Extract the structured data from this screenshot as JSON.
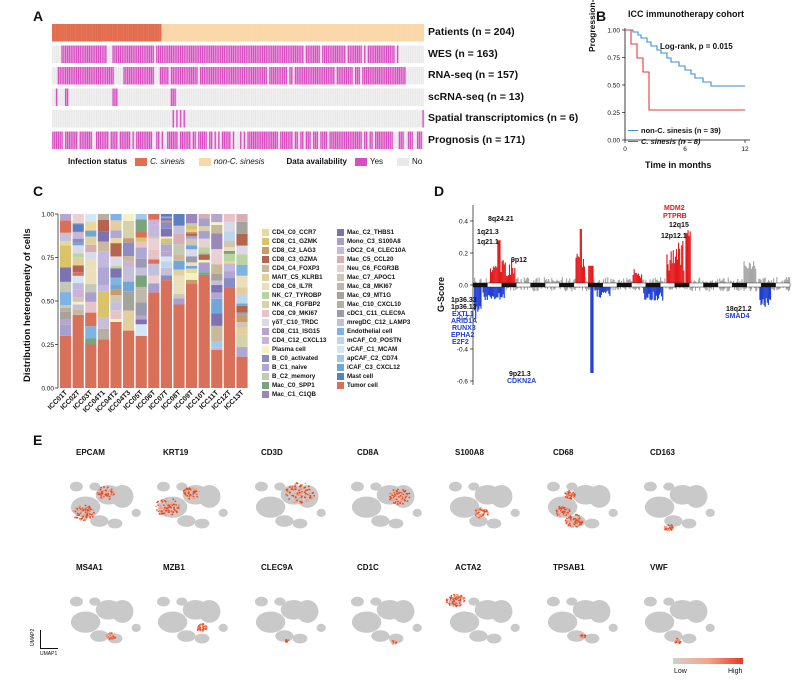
{
  "panels": {
    "A": {
      "letter": "A",
      "rows": [
        {
          "label": "Patients (n = 204)"
        },
        {
          "label": "WES (n = 163)"
        },
        {
          "label": "RNA-seq (n = 157)"
        },
        {
          "label": "scRNA-seq (n = 13)"
        },
        {
          "label": "Spatial transcriptomics (n = 6)"
        },
        {
          "label": "Prognosis (n = 171)"
        }
      ],
      "legend": {
        "infection_title": "Infection status",
        "infection_items": [
          {
            "label": "C. sinesis",
            "color": "#e36e4f"
          },
          {
            "label": "non-C. sinesis",
            "color": "#fad7a8"
          }
        ],
        "availability_title": "Data availability",
        "availability_items": [
          {
            "label": "Yes",
            "color": "#d94fc3"
          },
          {
            "label": "No",
            "color": "#e8e8e8"
          }
        ]
      }
    },
    "B": {
      "letter": "B",
      "title": "ICC immunotherapy cohort",
      "ylabel": "Progression-free survival",
      "xlabel": "Time in months",
      "annotation": "Log-rank, p = 0.015",
      "xticks": [
        "0",
        "6",
        "12"
      ],
      "yticks": [
        "0.00",
        "0.25",
        "0.50",
        "0.75",
        "1.00"
      ],
      "legend": [
        {
          "label": "non-C. sinesis (n = 39)",
          "color": "#3a8fd6"
        },
        {
          "label": "C. sinesis (n = 8)",
          "color": "#e6393c"
        }
      ]
    },
    "C": {
      "letter": "C",
      "ylabel": "Distribution heterogeneity of cells",
      "yticks": [
        "0.00",
        "0.25",
        "0.50",
        "0.75",
        "1.00"
      ],
      "samples": [
        "ICC01T",
        "ICC02T",
        "ICC03T",
        "ICC04T1",
        "ICC04T2",
        "ICC04T3",
        "ICC05T",
        "ICC06T",
        "ICC07T",
        "ICC08T",
        "ICC09T",
        "ICC10T",
        "ICC11T",
        "ICC12T",
        "ICC13T"
      ],
      "legend_col1": [
        {
          "label": "CD4_C0_CCR7",
          "color": "#e8d89a"
        },
        {
          "label": "CD8_C1_GZMK",
          "color": "#d9c46a"
        },
        {
          "label": "CD8_C2_LAG3",
          "color": "#c99a6a"
        },
        {
          "label": "CD8_C3_GZMA",
          "color": "#b5654e"
        },
        {
          "label": "CD4_C4_FOXP3",
          "color": "#c9b99a"
        },
        {
          "label": "MAIT_C5_KLRB1",
          "color": "#e3cf9e"
        },
        {
          "label": "CD8_C6_IL7R",
          "color": "#eadfb8"
        },
        {
          "label": "NK_C7_TYROBP",
          "color": "#b9d4a2"
        },
        {
          "label": "NK_C8_FGFBP2",
          "color": "#d6d2aa"
        },
        {
          "label": "CD8_C9_MKI67",
          "color": "#e7c3c5"
        },
        {
          "label": "γδT_C10_TRDC",
          "color": "#d9d9e8"
        },
        {
          "label": "CD8_C11_ISG15",
          "color": "#b7a6cc"
        },
        {
          "label": "CD4_C12_CXCL13",
          "color": "#ceb1d8"
        },
        {
          "label": "Plasma cell",
          "color": "#f2f2c4"
        },
        {
          "label": "B_C0_activated",
          "color": "#8c8cc4"
        },
        {
          "label": "B_C1_naive",
          "color": "#b0a8d4"
        },
        {
          "label": "B_C2_memory",
          "color": "#c3c9b4"
        },
        {
          "label": "Mac_C0_SPP1",
          "color": "#7aa37e"
        },
        {
          "label": "Mac_C1_C1QB",
          "color": "#9a88b8"
        }
      ],
      "legend_col2": [
        {
          "label": "Mac_C2_THBS1",
          "color": "#7d73b3"
        },
        {
          "label": "Mono_C3_S100A8",
          "color": "#a89fcf"
        },
        {
          "label": "cDC2_C4_CLEC10A",
          "color": "#c4b8de"
        },
        {
          "label": "Mac_C5_CCL20",
          "color": "#d8aeb4"
        },
        {
          "label": "Neu_C6_FCGR3B",
          "color": "#e9d0d3"
        },
        {
          "label": "Mac_C7_APOC1",
          "color": "#cfc6b4"
        },
        {
          "label": "Mac_C8_MKI67",
          "color": "#bdb8a8"
        },
        {
          "label": "Mac_C9_MT1G",
          "color": "#a5a49a"
        },
        {
          "label": "Mac_C10_CXCL10",
          "color": "#b8aea3"
        },
        {
          "label": "cDC1_C11_CLEC9A",
          "color": "#9b9bb0"
        },
        {
          "label": "mregDC_C12_LAMP3",
          "color": "#c5c0d9"
        },
        {
          "label": "Endothelial cell",
          "color": "#7fb3e3"
        },
        {
          "label": "mCAF_C0_POSTN",
          "color": "#bcd6ee"
        },
        {
          "label": "vCAF_C1_MCAM",
          "color": "#d4e6f4"
        },
        {
          "label": "apCAF_C2_CD74",
          "color": "#a3c9e8"
        },
        {
          "label": "iCAF_C3_CXCL12",
          "color": "#6fa7db"
        },
        {
          "label": "Mast cell",
          "color": "#5c7fc0"
        },
        {
          "label": "Tumor cell",
          "color": "#d9705a"
        }
      ]
    },
    "D": {
      "letter": "D",
      "ylabel": "G-Score",
      "yticks": [
        "0.4",
        "0.2",
        "0.0",
        "-0.2",
        "-0.4",
        "-0.6"
      ],
      "labels": [
        {
          "text": "1q21.3",
          "color": "#111111"
        },
        {
          "text": "1q21.1",
          "color": "#111111"
        },
        {
          "text": "8q24.21",
          "color": "#111111"
        },
        {
          "text": "9p12",
          "color": "#111111"
        },
        {
          "text": "MDM2",
          "color": "#e31a1c"
        },
        {
          "text": "PTPRB",
          "color": "#e31a1c"
        },
        {
          "text": "12q15",
          "color": "#111111"
        },
        {
          "text": "12p12.1",
          "color": "#111111"
        },
        {
          "text": "1p36.33",
          "color": "#111111"
        },
        {
          "text": "1p36.13",
          "color": "#111111"
        },
        {
          "text": "EXTL1",
          "color": "#1f3fd6"
        },
        {
          "text": "ARID1A",
          "color": "#1f3fd6"
        },
        {
          "text": "RUNX3",
          "color": "#1f3fd6"
        },
        {
          "text": "EPHA2",
          "color": "#1f3fd6"
        },
        {
          "text": "E2F2",
          "color": "#1f3fd6"
        },
        {
          "text": "9p21.3",
          "color": "#111111"
        },
        {
          "text": "CDKN2A",
          "color": "#1f3fd6"
        },
        {
          "text": "18q21.2",
          "color": "#111111"
        },
        {
          "text": "SMAD4",
          "color": "#1f3fd6"
        }
      ]
    },
    "E": {
      "letter": "E",
      "genes_row1": [
        "EPCAM",
        "KRT19",
        "CD3D",
        "CD8A",
        "S100A8",
        "CD68",
        "CD163"
      ],
      "genes_row2": [
        "MS4A1",
        "MZB1",
        "CLEC9A",
        "CD1C",
        "ACTA2",
        "TPSAB1",
        "VWF"
      ],
      "axis_umap2": "UMAP2",
      "axis_umap1": "UMAP1",
      "colorbar_low": "Low",
      "colorbar_high": "High"
    }
  }
}
